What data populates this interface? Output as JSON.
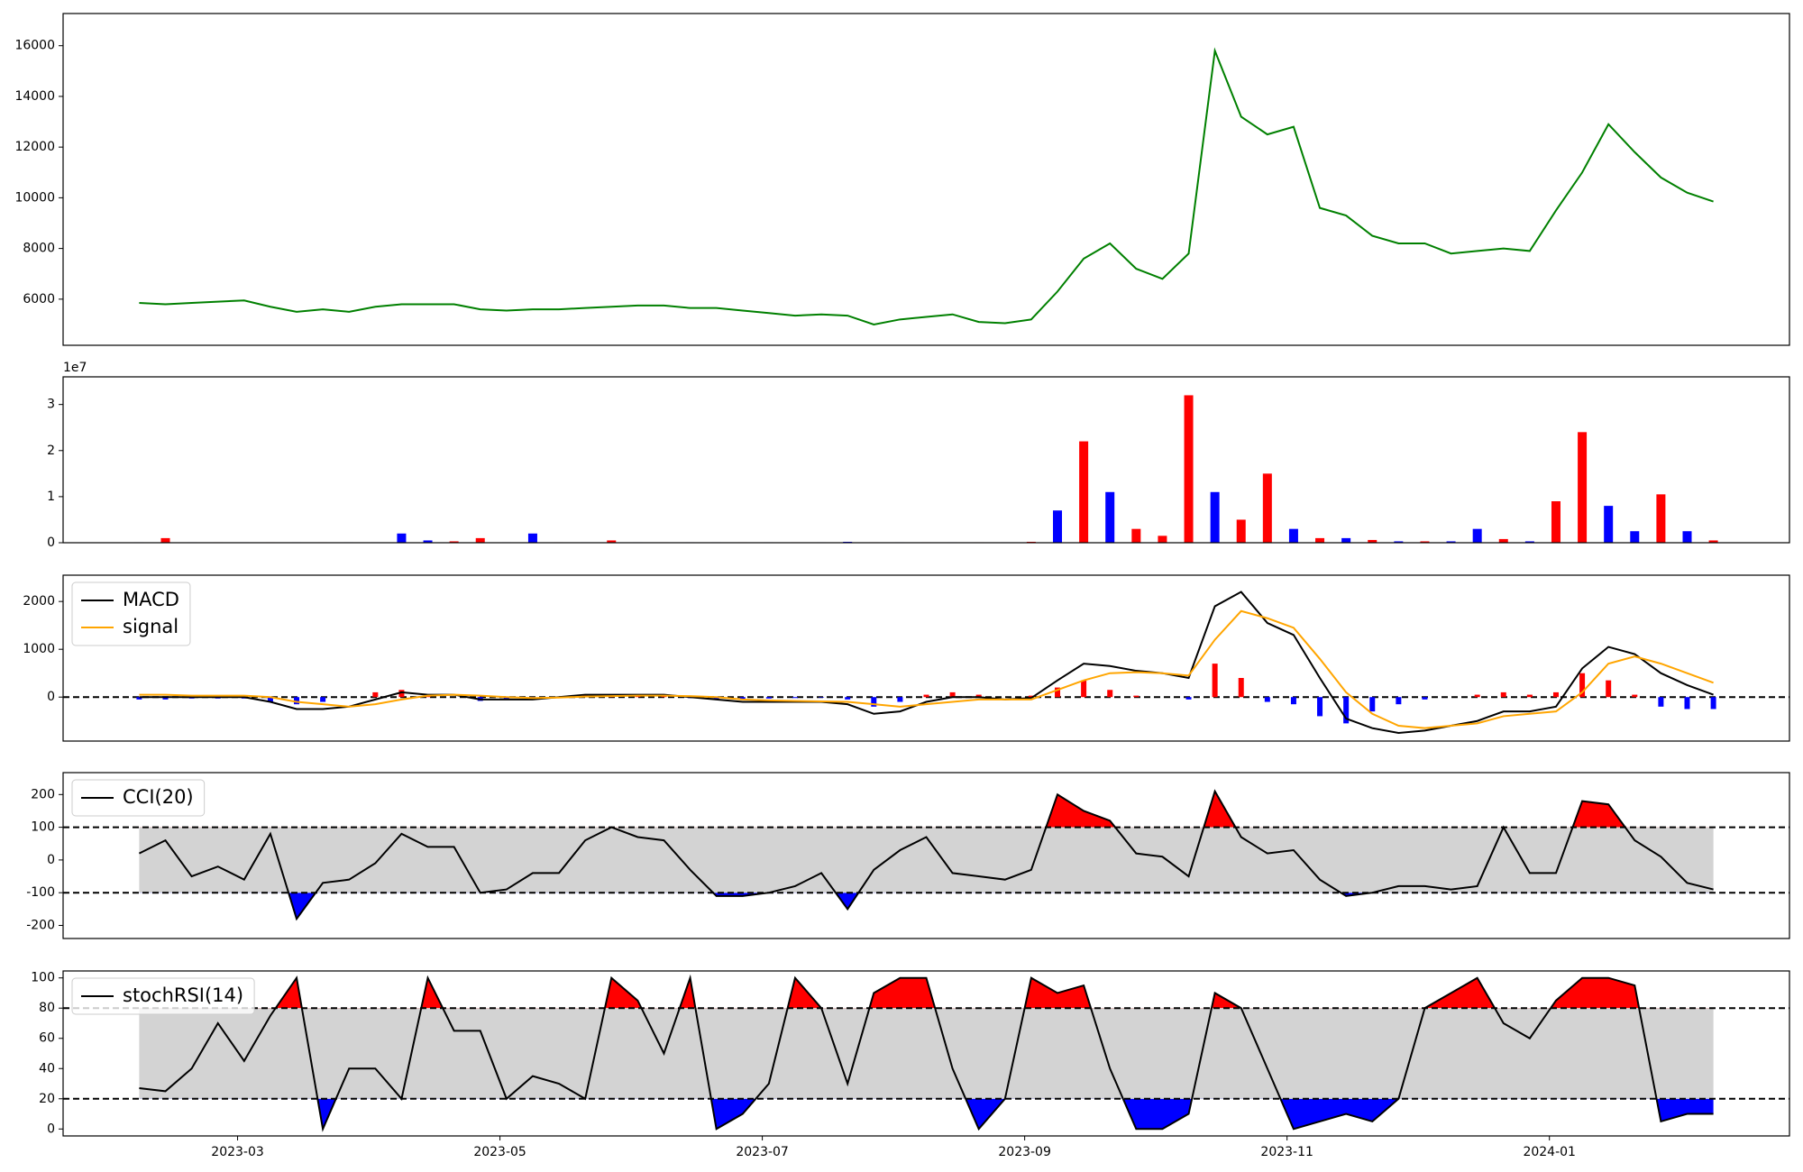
{
  "chart_data": [
    {
      "type": "line",
      "xlim": [
        1.67,
        14.83
      ],
      "ylim": [
        4180,
        17270
      ],
      "yticks": [
        6000,
        8000,
        10000,
        12000,
        14000,
        16000
      ],
      "x": [
        2.25,
        2.45,
        2.65,
        2.85,
        3.05,
        3.25,
        3.45,
        3.65,
        3.85,
        4.05,
        4.25,
        4.45,
        4.65,
        4.85,
        5.05,
        5.25,
        5.45,
        5.65,
        5.85,
        6.05,
        6.25,
        6.45,
        6.65,
        6.85,
        7.05,
        7.25,
        7.45,
        7.65,
        7.85,
        8.05,
        8.25,
        8.45,
        8.65,
        8.85,
        9.05,
        9.25,
        9.45,
        9.65,
        9.85,
        10.05,
        10.25,
        10.45,
        10.65,
        10.85,
        11.05,
        11.25,
        11.45,
        11.65,
        11.85,
        12.05,
        12.25,
        12.45,
        12.65,
        12.85,
        13.05,
        13.25,
        13.45,
        13.65,
        13.85,
        14.05,
        14.25
      ],
      "series": [
        {
          "color": "#008000",
          "values": [
            5850,
            5800,
            5850,
            5900,
            5950,
            5700,
            5500,
            5600,
            5500,
            5700,
            5800,
            5800,
            5800,
            5600,
            5550,
            5600,
            5600,
            5650,
            5700,
            5750,
            5750,
            5650,
            5650,
            5550,
            5450,
            5350,
            5400,
            5350,
            5000,
            5200,
            5300,
            5400,
            5100,
            5050,
            5200,
            6300,
            7600,
            8200,
            7200,
            6800,
            7800,
            15800,
            13200,
            12500,
            12800,
            9600,
            9300,
            8500,
            8200,
            8200,
            7800,
            7900,
            8000,
            7900,
            9500,
            11000,
            12900,
            11800,
            10800,
            10200,
            9850
          ]
        }
      ]
    },
    {
      "type": "bar",
      "xlim": [
        1.67,
        14.83
      ],
      "ylim": [
        0,
        36000000
      ],
      "offset_label": "1e7",
      "yticks": [
        0,
        {
          "value": 10000000,
          "label": "1"
        },
        {
          "value": 20000000,
          "label": "2"
        },
        {
          "value": 30000000,
          "label": "3"
        }
      ],
      "x": [
        2.25,
        2.45,
        2.65,
        2.85,
        3.05,
        3.25,
        3.45,
        3.65,
        3.85,
        4.05,
        4.25,
        4.45,
        4.65,
        4.85,
        5.05,
        5.25,
        5.45,
        5.65,
        5.85,
        6.05,
        6.25,
        6.45,
        6.65,
        6.85,
        7.05,
        7.25,
        7.45,
        7.65,
        7.85,
        8.05,
        8.25,
        8.45,
        8.65,
        8.85,
        9.05,
        9.25,
        9.45,
        9.65,
        9.85,
        10.05,
        10.25,
        10.45,
        10.65,
        10.85,
        11.05,
        11.25,
        11.45,
        11.65,
        11.85,
        12.05,
        12.25,
        12.45,
        12.65,
        12.85,
        13.05,
        13.25,
        13.45,
        13.65,
        13.85,
        14.05,
        14.25
      ],
      "values": [
        100000,
        1000000,
        100000,
        100000,
        100000,
        100000,
        100000,
        100000,
        100000,
        100000,
        2000000,
        500000,
        300000,
        1000000,
        100000,
        2000000,
        100000,
        100000,
        500000,
        100000,
        100000,
        100000,
        100000,
        100000,
        100000,
        100000,
        100000,
        200000,
        100000,
        100000,
        100000,
        100000,
        100000,
        100000,
        200000,
        7000000,
        22000000,
        11000000,
        3000000,
        1500000,
        32000000,
        11000000,
        5000000,
        15000000,
        3000000,
        1000000,
        1000000,
        600000,
        300000,
        300000,
        300000,
        3000000,
        800000,
        300000,
        9000000,
        24000000,
        8000000,
        2500000,
        10500000,
        2500000,
        500000
      ],
      "colors": [
        "blue",
        "red",
        "blue",
        "red",
        "blue",
        "red",
        "blue",
        "red",
        "blue",
        "blue",
        "blue",
        "blue",
        "red",
        "red",
        "blue",
        "blue",
        "red",
        "blue",
        "red",
        "blue",
        "red",
        "blue",
        "blue",
        "red",
        "blue",
        "red",
        "blue",
        "blue",
        "red",
        "blue",
        "red",
        "blue",
        "red",
        "blue",
        "red",
        "blue",
        "red",
        "blue",
        "red",
        "red",
        "red",
        "blue",
        "red",
        "red",
        "blue",
        "red",
        "blue",
        "red",
        "blue",
        "red",
        "blue",
        "blue",
        "red",
        "blue",
        "red",
        "red",
        "blue",
        "blue",
        "red",
        "blue",
        "red"
      ]
    },
    {
      "type": "line",
      "xlim": [
        1.67,
        14.83
      ],
      "ylim": [
        -920,
        2550
      ],
      "yticks": [
        0,
        1000,
        2000
      ],
      "hlines": [
        0
      ],
      "legend": "upper left",
      "x": [
        2.25,
        2.45,
        2.65,
        2.85,
        3.05,
        3.25,
        3.45,
        3.65,
        3.85,
        4.05,
        4.25,
        4.45,
        4.65,
        4.85,
        5.05,
        5.25,
        5.45,
        5.65,
        5.85,
        6.05,
        6.25,
        6.45,
        6.65,
        6.85,
        7.05,
        7.25,
        7.45,
        7.65,
        7.85,
        8.05,
        8.25,
        8.45,
        8.65,
        8.85,
        9.05,
        9.25,
        9.45,
        9.65,
        9.85,
        10.05,
        10.25,
        10.45,
        10.65,
        10.85,
        11.05,
        11.25,
        11.45,
        11.65,
        11.85,
        12.05,
        12.25,
        12.45,
        12.65,
        12.85,
        13.05,
        13.25,
        13.45,
        13.65,
        13.85,
        14.05,
        14.25
      ],
      "series": [
        {
          "name": "MACD",
          "color": "#000000",
          "values": [
            0,
            0,
            0,
            0,
            0,
            -100,
            -250,
            -250,
            -200,
            -50,
            100,
            50,
            50,
            -50,
            -50,
            -50,
            0,
            50,
            50,
            50,
            50,
            0,
            -50,
            -100,
            -100,
            -100,
            -100,
            -150,
            -350,
            -300,
            -100,
            0,
            0,
            -50,
            -20,
            350,
            700,
            650,
            550,
            500,
            400,
            1900,
            2200,
            1550,
            1300,
            400,
            -450,
            -650,
            -750,
            -700,
            -600,
            -500,
            -300,
            -300,
            -200,
            600,
            1050,
            900,
            500,
            250,
            50
          ]
        },
        {
          "name": "signal",
          "color": "#ffa500",
          "values": [
            50,
            50,
            30,
            30,
            30,
            0,
            -100,
            -150,
            -200,
            -150,
            -50,
            30,
            50,
            30,
            0,
            -20,
            -10,
            10,
            20,
            30,
            30,
            20,
            0,
            -50,
            -70,
            -80,
            -90,
            -100,
            -150,
            -200,
            -150,
            -100,
            -50,
            -50,
            -50,
            150,
            350,
            500,
            520,
            500,
            450,
            1200,
            1800,
            1650,
            1450,
            800,
            100,
            -350,
            -600,
            -650,
            -600,
            -550,
            -400,
            -350,
            -300,
            100,
            700,
            850,
            700,
            500,
            300
          ]
        }
      ],
      "histogram": {
        "positive_color": "#ff0000",
        "negative_color": "#0000ff",
        "values": [
          -50,
          -50,
          -30,
          -30,
          -30,
          -100,
          -150,
          -100,
          0,
          100,
          150,
          20,
          0,
          -80,
          -50,
          -30,
          10,
          40,
          30,
          20,
          20,
          -20,
          -50,
          -50,
          -30,
          -20,
          -10,
          -50,
          -200,
          -100,
          50,
          100,
          50,
          0,
          30,
          200,
          350,
          150,
          30,
          0,
          -50,
          700,
          400,
          -100,
          -150,
          -400,
          -550,
          -300,
          -150,
          -50,
          0,
          50,
          100,
          50,
          100,
          500,
          350,
          50,
          -200,
          -250,
          -250
        ]
      }
    },
    {
      "type": "line",
      "xlim": [
        1.67,
        14.83
      ],
      "ylim": [
        -240,
        267
      ],
      "yticks": [
        -200,
        -100,
        0,
        100,
        200
      ],
      "hlines": [
        100,
        -100
      ],
      "legend": "upper left",
      "band_color": "#d3d3d3",
      "above_color": "#ff0000",
      "below_color": "#0000ff",
      "x": [
        2.25,
        2.45,
        2.65,
        2.85,
        3.05,
        3.25,
        3.45,
        3.65,
        3.85,
        4.05,
        4.25,
        4.45,
        4.65,
        4.85,
        5.05,
        5.25,
        5.45,
        5.65,
        5.85,
        6.05,
        6.25,
        6.45,
        6.65,
        6.85,
        7.05,
        7.25,
        7.45,
        7.65,
        7.85,
        8.05,
        8.25,
        8.45,
        8.65,
        8.85,
        9.05,
        9.25,
        9.45,
        9.65,
        9.85,
        10.05,
        10.25,
        10.45,
        10.65,
        10.85,
        11.05,
        11.25,
        11.45,
        11.65,
        11.85,
        12.05,
        12.25,
        12.45,
        12.65,
        12.85,
        13.05,
        13.25,
        13.45,
        13.65,
        13.85,
        14.05,
        14.25
      ],
      "series": [
        {
          "name": "CCI(20)",
          "color": "#000000",
          "values": [
            20,
            60,
            -50,
            -20,
            -60,
            80,
            -180,
            -70,
            -60,
            -10,
            80,
            40,
            40,
            -100,
            -90,
            -40,
            -40,
            60,
            100,
            70,
            60,
            -30,
            -110,
            -110,
            -100,
            -80,
            -40,
            -150,
            -30,
            30,
            70,
            -40,
            -50,
            -60,
            -30,
            200,
            150,
            120,
            20,
            10,
            -50,
            210,
            70,
            20,
            30,
            -60,
            -110,
            -100,
            -80,
            -80,
            -90,
            -80,
            100,
            -40,
            -40,
            180,
            170,
            60,
            10,
            -70,
            -90
          ]
        }
      ]
    },
    {
      "type": "line",
      "xlim": [
        1.67,
        14.83
      ],
      "ylim": [
        -4.6,
        104.6
      ],
      "yticks": [
        0,
        20,
        40,
        60,
        80,
        100
      ],
      "hlines": [
        80,
        20
      ],
      "legend": "upper left",
      "band_color": "#d3d3d3",
      "above_color": "#ff0000",
      "below_color": "#0000ff",
      "xticks": [
        {
          "value": 3,
          "label": "2023-03"
        },
        {
          "value": 5,
          "label": "2023-05"
        },
        {
          "value": 7,
          "label": "2023-07"
        },
        {
          "value": 9,
          "label": "2023-09"
        },
        {
          "value": 11,
          "label": "2023-11"
        },
        {
          "value": 13,
          "label": "2024-01"
        }
      ],
      "x": [
        2.25,
        2.45,
        2.65,
        2.85,
        3.05,
        3.25,
        3.45,
        3.65,
        3.85,
        4.05,
        4.25,
        4.45,
        4.65,
        4.85,
        5.05,
        5.25,
        5.45,
        5.65,
        5.85,
        6.05,
        6.25,
        6.45,
        6.65,
        6.85,
        7.05,
        7.25,
        7.45,
        7.65,
        7.85,
        8.05,
        8.25,
        8.45,
        8.65,
        8.85,
        9.05,
        9.25,
        9.45,
        9.65,
        9.85,
        10.05,
        10.25,
        10.45,
        10.65,
        10.85,
        11.05,
        11.25,
        11.45,
        11.65,
        11.85,
        12.05,
        12.25,
        12.45,
        12.65,
        12.85,
        13.05,
        13.25,
        13.45,
        13.65,
        13.85,
        14.05,
        14.25
      ],
      "series": [
        {
          "name": "stochRSI(14)",
          "color": "#000000",
          "values": [
            27,
            25,
            40,
            70,
            45,
            75,
            100,
            0,
            40,
            40,
            20,
            100,
            65,
            65,
            20,
            35,
            30,
            20,
            100,
            85,
            50,
            100,
            0,
            10,
            30,
            100,
            80,
            30,
            90,
            100,
            100,
            40,
            0,
            20,
            100,
            90,
            95,
            40,
            0,
            0,
            10,
            90,
            80,
            40,
            0,
            5,
            10,
            5,
            20,
            80,
            90,
            100,
            70,
            60,
            85,
            100,
            100,
            95,
            5,
            10,
            10
          ]
        }
      ]
    }
  ]
}
